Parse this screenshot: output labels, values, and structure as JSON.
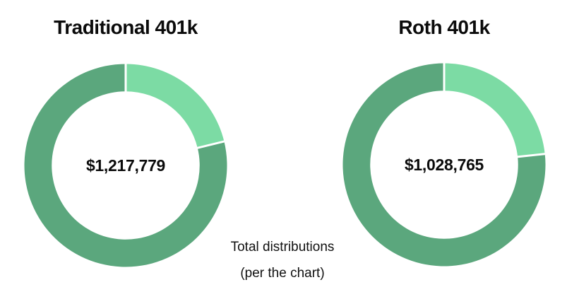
{
  "page": {
    "background": "#ffffff"
  },
  "caption": {
    "line1": "Total distributions",
    "line2": "(per the chart)"
  },
  "chart_data": [
    {
      "type": "pie",
      "subtype": "donut",
      "title": "Traditional 401k",
      "center_label": "$1,217,779",
      "start_angle_deg": 0,
      "direction": "clockwise",
      "inner_radius_ratio": 0.73,
      "legend": "none",
      "slice_border_color": "#FFFFFF",
      "slices": [
        {
          "name": "light-green-segment",
          "percent": 21.2,
          "color": "#7CDBA4"
        },
        {
          "name": "dark-green-segment",
          "percent": 78.8,
          "color": "#5BA77D"
        }
      ]
    },
    {
      "type": "pie",
      "subtype": "donut",
      "title": "Roth 401k",
      "center_label": "$1,028,765",
      "start_angle_deg": 0,
      "direction": "clockwise",
      "inner_radius_ratio": 0.73,
      "legend": "none",
      "slice_border_color": "#FFFFFF",
      "slices": [
        {
          "name": "light-green-segment",
          "percent": 23.3,
          "color": "#7CDBA4"
        },
        {
          "name": "dark-green-segment",
          "percent": 76.7,
          "color": "#5BA77D"
        }
      ]
    }
  ]
}
